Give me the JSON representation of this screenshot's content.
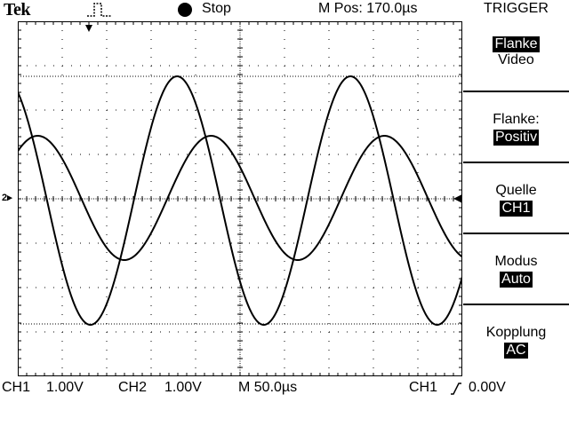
{
  "header": {
    "brand": "Tek",
    "trigger_icon": "trigger-position-icon",
    "run_state": "Stop",
    "horizontal_position": "M Pos: 170.0µs",
    "menu_title": "TRIGGER"
  },
  "markers": {
    "ch2_ground": "2",
    "trigger_level": "◀"
  },
  "menu": {
    "items": [
      {
        "label": "Flanke",
        "value": "Video"
      },
      {
        "label": "Flanke:",
        "value": "Positiv"
      },
      {
        "label": "Quelle",
        "value": "CH1"
      },
      {
        "label": "Modus",
        "value": "Auto"
      },
      {
        "label": "Kopplung",
        "value": "AC"
      }
    ]
  },
  "status": {
    "ch1_label": "CH1",
    "ch1_scale": "1.00V",
    "ch2_label": "CH2",
    "ch2_scale": "1.00V",
    "timebase": "M 50.0µs",
    "trigger_source": "CH1",
    "trigger_slope_icon": "rising-edge-icon",
    "trigger_level": "0.00V"
  },
  "colors": {
    "foreground": "#000000",
    "background": "#ffffff"
  }
}
